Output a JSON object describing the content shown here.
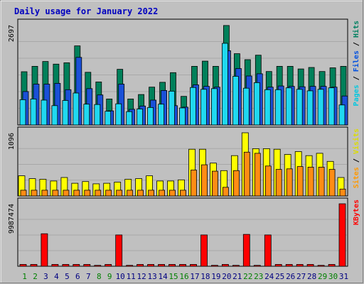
{
  "chart_data": {
    "type": "bar",
    "title": "Daily usage for January 2022",
    "days": [
      "1",
      "2",
      "3",
      "4",
      "5",
      "6",
      "7",
      "8",
      "9",
      "10",
      "11",
      "12",
      "13",
      "14",
      "15",
      "16",
      "17",
      "18",
      "19",
      "20",
      "21",
      "22",
      "23",
      "24",
      "25",
      "26",
      "27",
      "28",
      "29",
      "30",
      "31"
    ],
    "weekend_days": [
      "1",
      "2",
      "8",
      "9",
      "15",
      "16",
      "22",
      "23",
      "29",
      "30"
    ],
    "panels": [
      {
        "id": "top",
        "scale_label": "2697",
        "ymax": 2697,
        "legend": [
          {
            "text": "Pages",
            "color": "#00c8e0"
          },
          {
            "text": " / ",
            "color": "#000000"
          },
          {
            "text": "Files",
            "color": "#0050e0"
          },
          {
            "text": " / ",
            "color": "#000000"
          },
          {
            "text": "Hits",
            "color": "#008060"
          }
        ],
        "series": [
          {
            "name": "Hits",
            "color": "#00805a",
            "values": [
              1435,
              1580,
              1710,
              1640,
              1675,
              2130,
              1420,
              1160,
              700,
              1500,
              700,
              820,
              1020,
              1150,
              1410,
              770,
              1580,
              1720,
              1580,
              2680,
              1920,
              1760,
              1880,
              1440,
              1580,
              1580,
              1510,
              1550,
              1440,
              1540,
              1580
            ]
          },
          {
            "name": "Files",
            "color": "#1a50d8",
            "values": [
              900,
              1100,
              1100,
              1120,
              950,
              1820,
              980,
              810,
              380,
              1100,
              420,
              510,
              670,
              930,
              520,
              480,
              1080,
              1040,
              1020,
              2000,
              1520,
              1320,
              1380,
              1020,
              1050,
              1040,
              1030,
              1040,
              1040,
              1020,
              780
            ]
          },
          {
            "name": "Pages",
            "color": "#20d8f0",
            "values": [
              680,
              700,
              670,
              520,
              660,
              860,
              560,
              550,
              370,
              570,
              360,
              430,
              470,
              560,
              910,
              460,
              1010,
              960,
              980,
              2200,
              1310,
              990,
              1140,
              950,
              950,
              1000,
              960,
              920,
              960,
              1000,
              540
            ]
          }
        ]
      },
      {
        "id": "middle",
        "scale_label": "1096",
        "ymax": 1096,
        "legend": [
          {
            "text": "Sites",
            "color": "#ff9900"
          },
          {
            "text": " / ",
            "color": "#000000"
          },
          {
            "text": "Visits",
            "color": "#dcdc00"
          }
        ],
        "series": [
          {
            "name": "Visits",
            "color": "#ffff00",
            "values": [
              350,
              300,
              290,
              260,
              320,
              220,
              250,
              210,
              220,
              240,
              290,
              300,
              350,
              260,
              260,
              280,
              810,
              810,
              570,
              440,
              700,
              1096,
              820,
              820,
              810,
              720,
              770,
              700,
              740,
              600,
              320
            ]
          },
          {
            "name": "Sites",
            "color": "#ff8c14",
            "values": [
              100,
              100,
              100,
              100,
              100,
              100,
              100,
              100,
              100,
              100,
              100,
              100,
              100,
              100,
              100,
              100,
              450,
              540,
              430,
              150,
              440,
              760,
              740,
              520,
              460,
              470,
              510,
              500,
              500,
              460,
              120
            ]
          }
        ]
      },
      {
        "id": "bottom",
        "scale_label": "9987474",
        "ymax": 9987474,
        "legend": [
          {
            "text": "KBytes",
            "color": "#ff0000"
          }
        ],
        "series": [
          {
            "name": "KBytes",
            "color": "#ff0000",
            "values": [
              300000,
              300000,
              5200000,
              300000,
              300000,
              300000,
              300000,
              150000,
              300000,
              5000000,
              150000,
              300000,
              300000,
              300000,
              300000,
              300000,
              300000,
              5000000,
              150000,
              300000,
              150000,
              5100000,
              150000,
              5000000,
              300000,
              300000,
              300000,
              300000,
              150000,
              300000,
              9987474
            ]
          }
        ]
      }
    ]
  },
  "colors": {
    "background": "#c0c0c0",
    "grid": "#a8a8a8",
    "title": "#0000c0",
    "weekday_label": "#000080",
    "weekend_label": "#008000"
  }
}
